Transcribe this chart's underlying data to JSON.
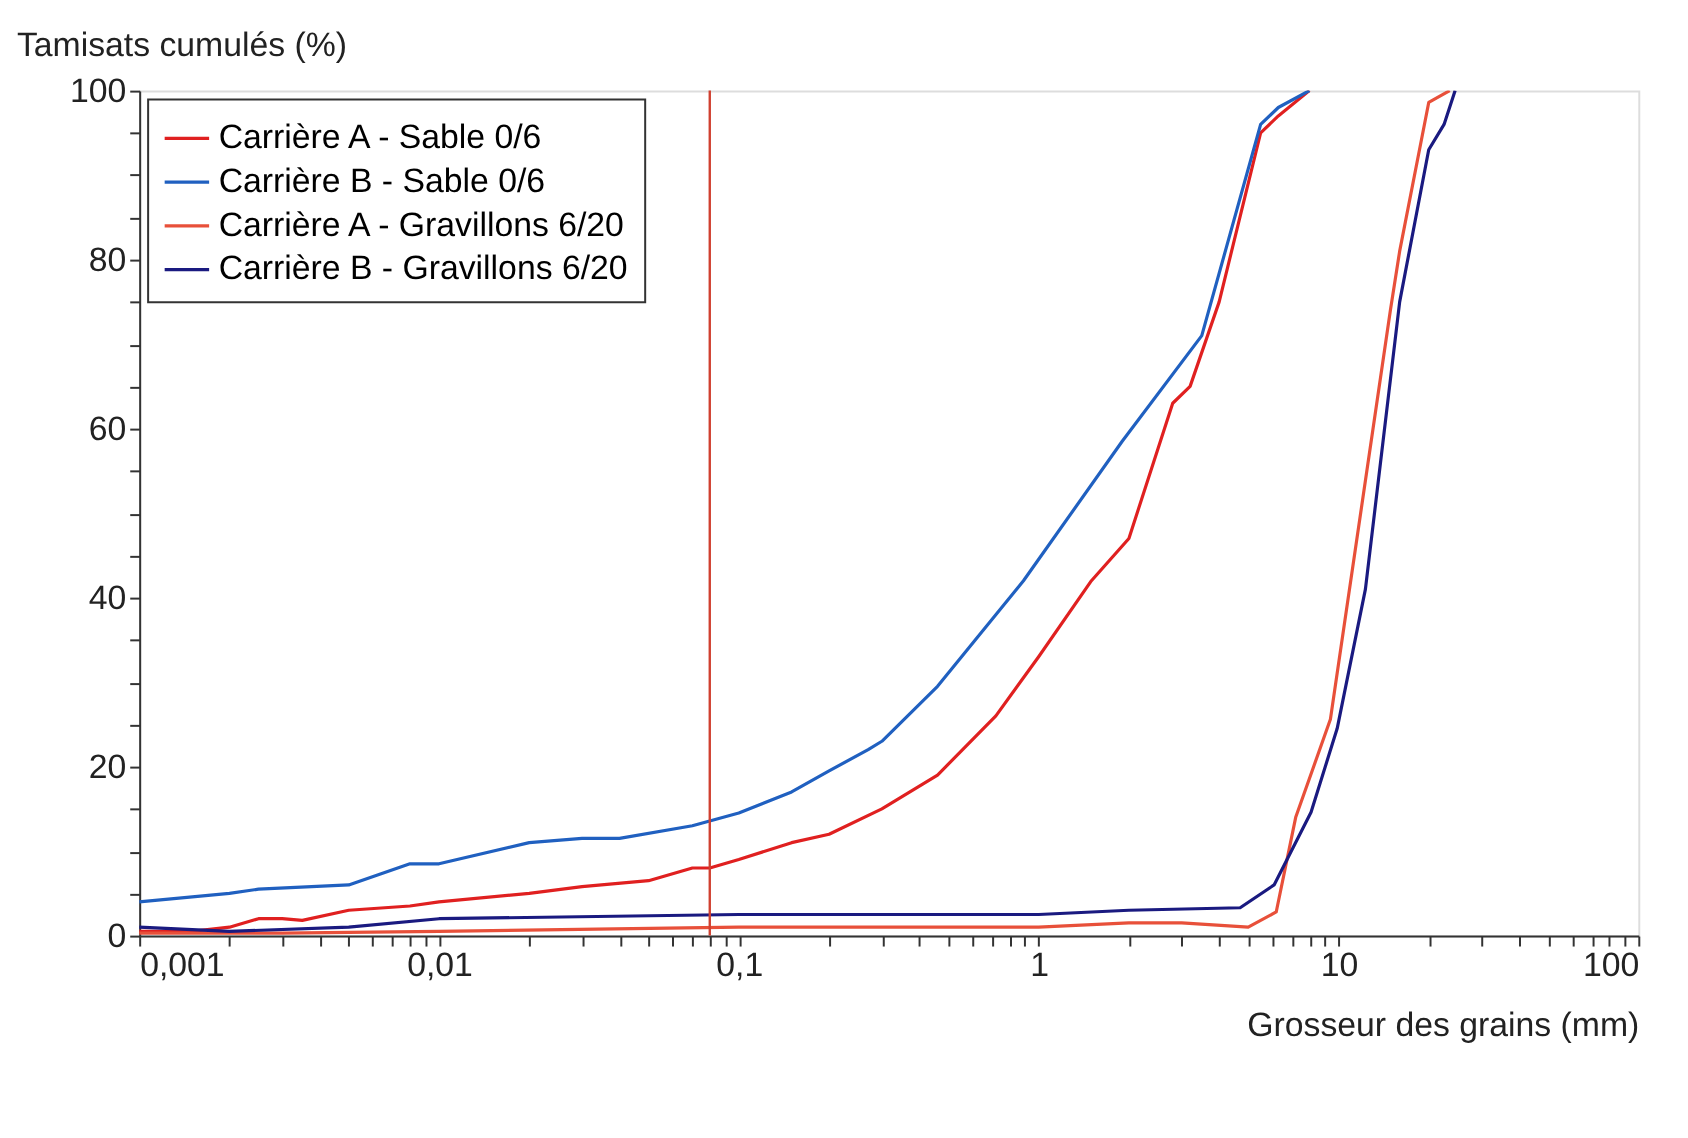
{
  "chart_data": {
    "type": "line",
    "xlabel": "Grosseur des grains (mm)",
    "ylabel": "Tamisats cumulés (%)",
    "log": "x",
    "xlim": [
      0.001,
      100
    ],
    "ylim": [
      0,
      100
    ],
    "xticks": [
      {
        "value": 0.001,
        "label": "0,001"
      },
      {
        "value": 0.002,
        "label": null
      },
      {
        "value": 0.003,
        "label": null
      },
      {
        "value": 0.004,
        "label": null
      },
      {
        "value": 0.005,
        "label": null
      },
      {
        "value": 0.006,
        "label": null
      },
      {
        "value": 0.007,
        "label": null
      },
      {
        "value": 0.008,
        "label": null
      },
      {
        "value": 0.009,
        "label": null
      },
      {
        "value": 0.01,
        "label": "0,01"
      },
      {
        "value": 0.02,
        "label": null
      },
      {
        "value": 0.03,
        "label": null
      },
      {
        "value": 0.04,
        "label": null
      },
      {
        "value": 0.05,
        "label": null
      },
      {
        "value": 0.06,
        "label": null
      },
      {
        "value": 0.07,
        "label": null
      },
      {
        "value": 0.08,
        "label": null
      },
      {
        "value": 0.09,
        "label": null
      },
      {
        "value": 0.1,
        "label": "0,1"
      },
      {
        "value": 0.2,
        "label": null
      },
      {
        "value": 0.3,
        "label": null
      },
      {
        "value": 0.4,
        "label": null
      },
      {
        "value": 0.5,
        "label": null
      },
      {
        "value": 0.6,
        "label": null
      },
      {
        "value": 0.7,
        "label": null
      },
      {
        "value": 0.8,
        "label": null
      },
      {
        "value": 0.9,
        "label": null
      },
      1,
      {
        "value": 2,
        "label": null
      },
      {
        "value": 3,
        "label": null
      },
      {
        "value": 4,
        "label": null
      },
      {
        "value": 5,
        "label": null
      },
      {
        "value": 6,
        "label": null
      },
      {
        "value": 7,
        "label": null
      },
      {
        "value": 8,
        "label": null
      },
      {
        "value": 9,
        "label": null
      },
      10,
      {
        "value": 20,
        "label": null
      },
      {
        "value": 30,
        "label": null
      },
      {
        "value": 40,
        "label": null
      },
      {
        "value": 50,
        "label": null
      },
      {
        "value": 60,
        "label": null
      },
      {
        "value": 70,
        "label": null
      },
      {
        "value": 80,
        "label": null
      },
      {
        "value": 90,
        "label": null
      },
      100
    ],
    "yticks": [
      0,
      {
        "value": 5,
        "label": null
      },
      {
        "value": 10,
        "label": null
      },
      {
        "value": 15,
        "label": null
      },
      20,
      {
        "value": 25,
        "label": null
      },
      {
        "value": 30,
        "label": null
      },
      {
        "value": 35,
        "label": null
      },
      40,
      {
        "value": 45,
        "label": null
      },
      {
        "value": 50,
        "label": null
      },
      {
        "value": 55,
        "label": null
      },
      60,
      {
        "value": 65,
        "label": null
      },
      {
        "value": 70,
        "label": null
      },
      {
        "value": 75,
        "label": null
      },
      80,
      {
        "value": 85,
        "label": null
      },
      {
        "value": 90,
        "label": null
      },
      {
        "value": 95,
        "label": null
      },
      100
    ],
    "grid": false,
    "legend": "top left",
    "line_style": "solid",
    "ref_lines": [
      {
        "axis": "x",
        "value": 0.08,
        "color": "#d04030"
      }
    ],
    "series": [
      {
        "name": "Carrière A - Sable 0/6",
        "color": "#e02020",
        "x": [
          0.001,
          0.0015,
          0.002,
          0.0025,
          0.003,
          0.0035,
          0.005,
          0.008,
          0.01,
          0.02,
          0.03,
          0.05,
          0.07,
          0.08,
          0.1,
          0.15,
          0.2,
          0.3,
          0.46,
          0.72,
          1,
          1.5,
          2,
          2.8,
          3.2,
          4,
          5.5,
          6.3,
          8
        ],
        "values": [
          0.5,
          0.5,
          1,
          2,
          2,
          1.8,
          3,
          3.5,
          4,
          5,
          5.8,
          6.5,
          8,
          8,
          9,
          11,
          12,
          15,
          19,
          26,
          33,
          42,
          47,
          63,
          65,
          75,
          95,
          97,
          100
        ]
      },
      {
        "name": "Carrière B - Sable 0/6",
        "color": "#2060c0",
        "x": [
          0.001,
          0.002,
          0.0025,
          0.005,
          0.008,
          0.01,
          0.02,
          0.03,
          0.04,
          0.07,
          0.1,
          0.15,
          0.2,
          0.27,
          0.3,
          0.46,
          0.89,
          1.9,
          3.5,
          5.5,
          6.3,
          8
        ],
        "values": [
          4,
          5,
          5.5,
          6,
          8.5,
          8.5,
          11,
          11.5,
          11.5,
          13,
          14.5,
          17,
          19.5,
          22,
          23,
          29.5,
          42,
          58.5,
          71,
          96,
          98,
          100
        ]
      },
      {
        "name": "Carrière A - Gravillons 6/20",
        "color": "#e8503a",
        "x": [
          0.001,
          0.003,
          0.01,
          0.1,
          1,
          2,
          3,
          5,
          6.2,
          7.2,
          9.4,
          14.9,
          16,
          20,
          23.5
        ],
        "values": [
          0.3,
          0.3,
          0.5,
          1,
          1,
          1.5,
          1.5,
          1,
          2.8,
          14,
          25.6,
          74,
          81,
          98.6,
          100
        ]
      },
      {
        "name": "Carrière B - Gravillons 6/20",
        "color": "#1a1a80",
        "x": [
          0.001,
          0.002,
          0.005,
          0.01,
          0.1,
          1,
          2,
          4.7,
          6.1,
          8.1,
          9.9,
          12.3,
          16,
          20,
          22.5,
          24.5
        ],
        "values": [
          1,
          0.5,
          1,
          2,
          2.5,
          2.5,
          3,
          3.3,
          6,
          14.6,
          24.5,
          41,
          75,
          93,
          96,
          100
        ]
      }
    ]
  }
}
